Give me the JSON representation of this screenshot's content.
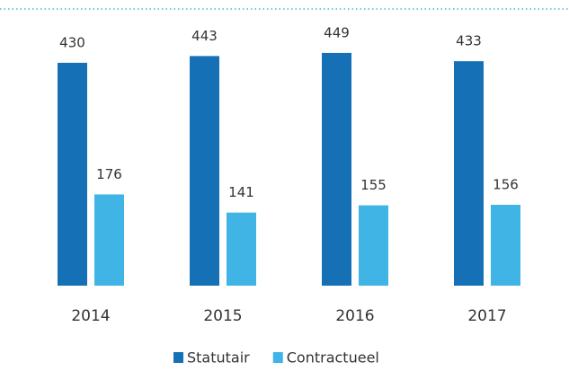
{
  "chart_data": {
    "type": "bar",
    "categories": [
      "2014",
      "2015",
      "2016",
      "2017"
    ],
    "series": [
      {
        "name": "Statutair",
        "color": "#1570b6",
        "values": [
          430,
          443,
          449,
          433
        ]
      },
      {
        "name": "Contractueel",
        "color": "#40b4e5",
        "values": [
          176,
          141,
          155,
          156
        ]
      }
    ],
    "legend": "bottom"
  }
}
